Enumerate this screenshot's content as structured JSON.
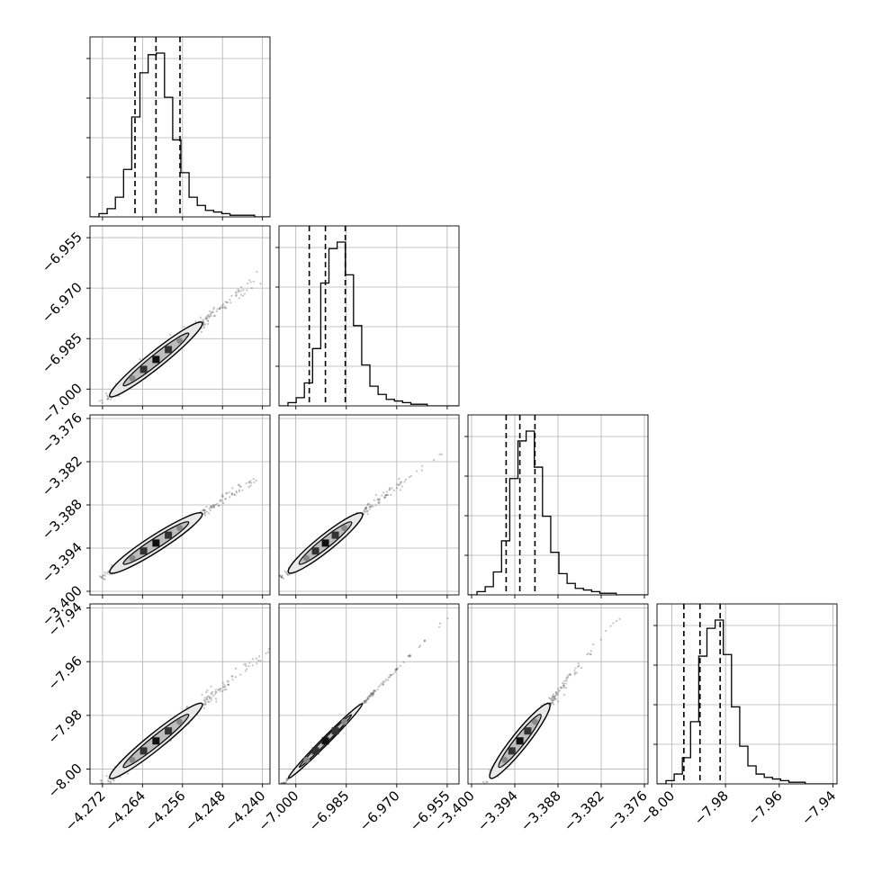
{
  "chart_data": {
    "type": "corner",
    "grid": true,
    "params": [
      {
        "range": [
          -4.2745,
          -4.2385
        ],
        "ticks": [
          "−4.272",
          "−4.264",
          "−4.256",
          "−4.248",
          "−4.240"
        ],
        "tick_values": [
          -4.272,
          -4.264,
          -4.256,
          -4.248,
          -4.24
        ],
        "quantiles": [
          -4.2655,
          -4.2613,
          -4.2565
        ],
        "hist": [
          0.02,
          0.05,
          0.12,
          0.29,
          0.61,
          0.88,
          0.99,
          1.0,
          0.73,
          0.47,
          0.27,
          0.12,
          0.07,
          0.04,
          0.03,
          0.02,
          0.01,
          0.01,
          0.01,
          0.0
        ]
      },
      {
        "range": [
          -7.005,
          -6.9515
        ],
        "ticks": [
          "−7.000",
          "−6.985",
          "−6.970",
          "−6.955"
        ],
        "tick_values": [
          -7.0,
          -6.985,
          -6.97,
          -6.955
        ],
        "quantiles": [
          -6.996,
          -6.9912,
          -6.9853
        ],
        "hist": [
          0.02,
          0.05,
          0.14,
          0.35,
          0.75,
          0.96,
          1.0,
          0.8,
          0.49,
          0.25,
          0.12,
          0.07,
          0.04,
          0.03,
          0.02,
          0.01,
          0.01,
          0.0,
          0.0,
          0.0
        ]
      },
      {
        "range": [
          -3.4005,
          -3.3755
        ],
        "ticks": [
          "−3.400",
          "−3.394",
          "−3.388",
          "−3.382",
          "−3.376"
        ],
        "tick_values": [
          -3.4,
          -3.394,
          -3.388,
          -3.382,
          -3.376
        ],
        "quantiles": [
          -3.3952,
          -3.3933,
          -3.3912
        ],
        "hist": [
          0.02,
          0.05,
          0.14,
          0.33,
          0.71,
          0.94,
          1.0,
          0.78,
          0.48,
          0.26,
          0.13,
          0.07,
          0.04,
          0.03,
          0.02,
          0.01,
          0.01,
          0.0,
          0.0,
          0.0
        ]
      },
      {
        "range": [
          -8.0055,
          -7.9385
        ],
        "ticks": [
          "−8.00",
          "−7.98",
          "−7.96",
          "−7.94"
        ],
        "tick_values": [
          -8.0,
          -7.98,
          -7.96,
          -7.94
        ],
        "quantiles": [
          -7.9955,
          -7.9895,
          -7.982
        ],
        "hist": [
          0.02,
          0.06,
          0.16,
          0.38,
          0.78,
          0.95,
          1.0,
          0.79,
          0.47,
          0.23,
          0.11,
          0.06,
          0.04,
          0.03,
          0.02,
          0.01,
          0.01,
          0.0,
          0.0,
          0.0
        ]
      }
    ],
    "colors": {
      "line": "#000000",
      "grid": "#b0b0b0",
      "scatter": "#555555",
      "contour_fill": "#e8e8e8"
    }
  }
}
